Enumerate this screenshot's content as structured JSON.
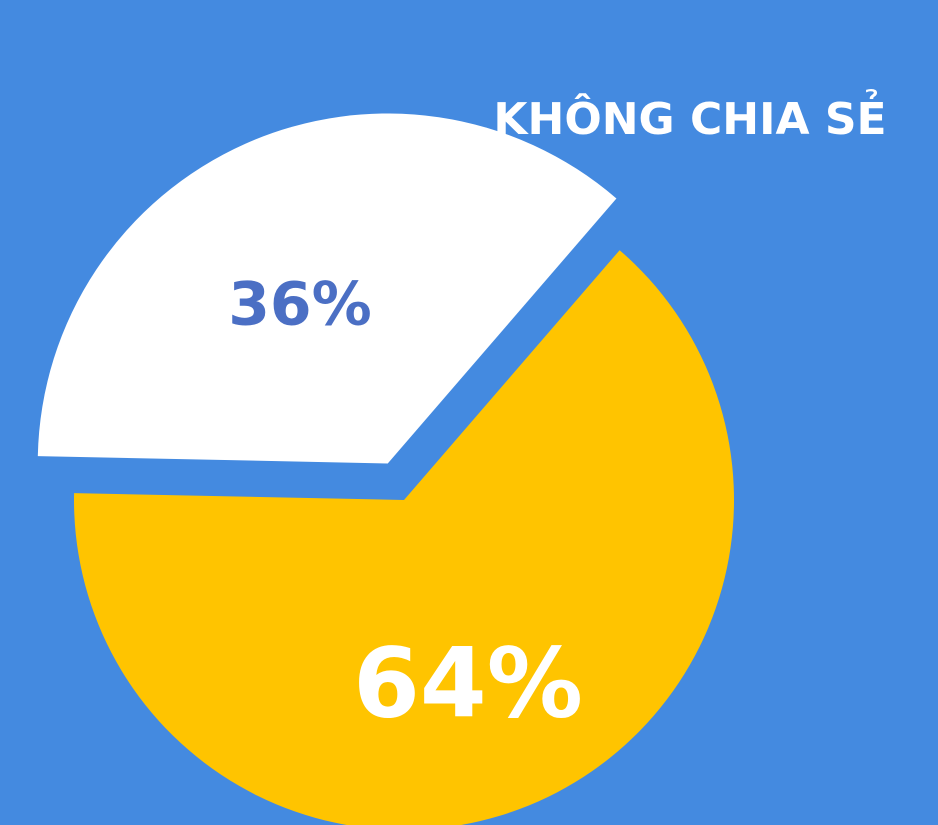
{
  "chart_data": {
    "type": "pie",
    "annotation": "KHÔNG CHIA SẺ",
    "values": [
      36,
      64
    ],
    "value_labels": [
      "36%",
      "64%"
    ],
    "colors": [
      "#ffffff",
      "#ffc400"
    ]
  }
}
